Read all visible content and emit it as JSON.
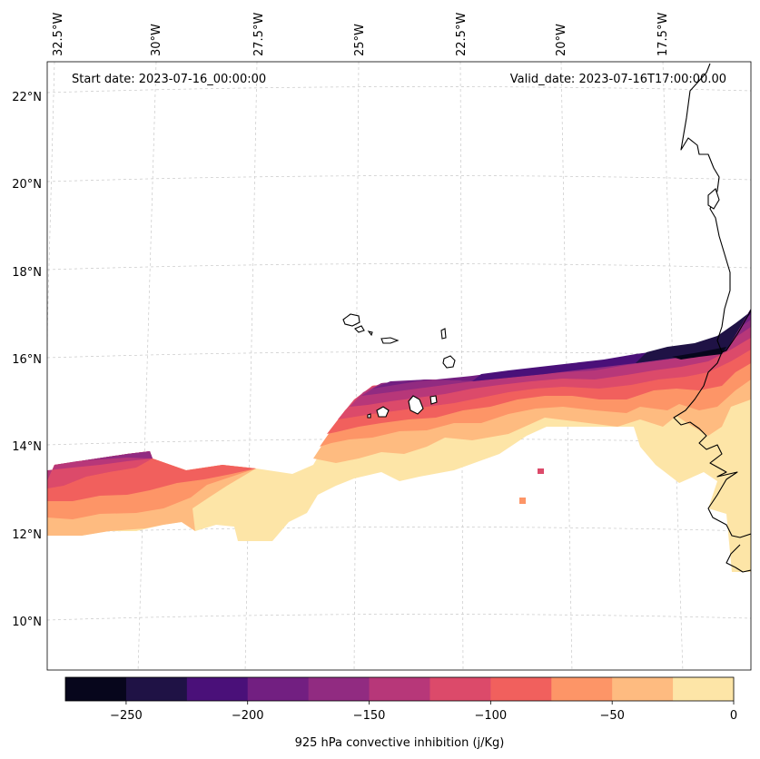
{
  "map": {
    "start_date": "Start date: 2023-07-16_00:00:00",
    "valid_date": "Valid_date: 2023-07-16T17:00:00.00",
    "longitude_labels": [
      "32.5°W",
      "30°W",
      "27.5°W",
      "25°W",
      "22.5°W",
      "20°W",
      "17.5°W"
    ],
    "latitude_labels": [
      "22°N",
      "20°N",
      "18°N",
      "16°N",
      "14°N",
      "12°N",
      "10°N"
    ]
  },
  "colorbar": {
    "label": "925 hPa convective inhibition (j/Kg)",
    "tick_labels": [
      "−250",
      "−200",
      "−150",
      "−100",
      "−50",
      "0"
    ],
    "bounds": [
      -275,
      -250,
      -225,
      -200,
      -175,
      -150,
      -125,
      -100,
      -75,
      -50,
      -25,
      0
    ],
    "colors": [
      "#07061c",
      "#1f1245",
      "#4a1079",
      "#721f81",
      "#912b81",
      "#b73779",
      "#dc4a6a",
      "#f1605d",
      "#fd9567",
      "#febb80",
      "#fde5a7"
    ]
  },
  "colors": {
    "background": "#ffffff",
    "gridline": "#c8c8c8",
    "coastline": "#000000"
  },
  "chart_data": {
    "type": "heatmap",
    "variable": "925 hPa convective inhibition",
    "units": "j/Kg",
    "vmin": -275,
    "vmax": 0,
    "lon_range": [
      -33,
      -16.5
    ],
    "lat_range": [
      9,
      22.7
    ],
    "regions": [
      {
        "name": "eastern band near African coast",
        "lon_range": [
          -20,
          -16.5
        ],
        "lat_range": [
          12.5,
          16.3
        ],
        "min_value": -275,
        "max_value": 0
      },
      {
        "name": "central band south of Cape Verde",
        "lon_range": [
          -26,
          -20
        ],
        "lat_range": [
          13.4,
          15.5
        ],
        "min_value": -250,
        "max_value": 0
      },
      {
        "name": "western band",
        "lon_range": [
          -33,
          -26
        ],
        "lat_range": [
          11.8,
          13.8
        ],
        "min_value": -175,
        "max_value": 0
      }
    ]
  }
}
